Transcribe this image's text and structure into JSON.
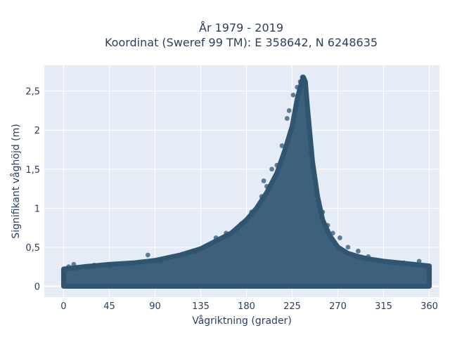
{
  "chart_data": {
    "type": "scatter",
    "title_line1": "År 1979 - 2019",
    "title_line2": "Koordinat (Sweref 99 TM): E 358642, N 6248635",
    "xlabel": "Vågriktning (grader)",
    "ylabel": "Signifikant våghöjd (m)",
    "xlim": [
      -19,
      370
    ],
    "ylim": [
      -0.14,
      2.83
    ],
    "x_ticks": [
      0,
      45,
      90,
      135,
      180,
      225,
      270,
      315,
      360
    ],
    "x_tick_labels": [
      "0",
      "45",
      "90",
      "135",
      "180",
      "225",
      "270",
      "315",
      "360"
    ],
    "y_ticks": [
      0,
      0.5,
      1,
      1.5,
      2,
      2.5
    ],
    "y_tick_labels": [
      "0",
      "0,5",
      "1",
      "1,5",
      "2",
      "2,5"
    ],
    "grid": true,
    "marker_color": "#2f5570",
    "plot_background": "#e5ecf6",
    "envelope": {
      "x": [
        0,
        20,
        45,
        70,
        90,
        115,
        135,
        150,
        165,
        180,
        190,
        200,
        210,
        218,
        225,
        230,
        234,
        236,
        238,
        240,
        245,
        250,
        255,
        262,
        270,
        280,
        290,
        300,
        315,
        330,
        345,
        360
      ],
      "upper": [
        0.22,
        0.25,
        0.28,
        0.3,
        0.33,
        0.4,
        0.48,
        0.58,
        0.68,
        0.85,
        1.0,
        1.2,
        1.45,
        1.75,
        2.05,
        2.4,
        2.6,
        2.68,
        2.62,
        2.3,
        1.6,
        1.15,
        0.85,
        0.65,
        0.5,
        0.42,
        0.38,
        0.35,
        0.32,
        0.3,
        0.28,
        0.26
      ]
    },
    "sample_points": [
      {
        "x": 0,
        "y": 0.12
      },
      {
        "x": 5,
        "y": 0.25
      },
      {
        "x": 10,
        "y": 0.28
      },
      {
        "x": 30,
        "y": 0.27
      },
      {
        "x": 45,
        "y": 0.26
      },
      {
        "x": 83,
        "y": 0.4
      },
      {
        "x": 95,
        "y": 0.32
      },
      {
        "x": 130,
        "y": 0.44
      },
      {
        "x": 150,
        "y": 0.62
      },
      {
        "x": 160,
        "y": 0.68
      },
      {
        "x": 175,
        "y": 0.8
      },
      {
        "x": 185,
        "y": 0.95
      },
      {
        "x": 195,
        "y": 1.15
      },
      {
        "x": 197,
        "y": 1.35
      },
      {
        "x": 200,
        "y": 1.28
      },
      {
        "x": 205,
        "y": 1.5
      },
      {
        "x": 210,
        "y": 1.55
      },
      {
        "x": 215,
        "y": 1.8
      },
      {
        "x": 220,
        "y": 2.15
      },
      {
        "x": 222,
        "y": 2.25
      },
      {
        "x": 226,
        "y": 2.45
      },
      {
        "x": 230,
        "y": 2.55
      },
      {
        "x": 233,
        "y": 2.62
      },
      {
        "x": 235,
        "y": 2.68
      },
      {
        "x": 237,
        "y": 2.65
      },
      {
        "x": 240,
        "y": 2.2
      },
      {
        "x": 243,
        "y": 1.7
      },
      {
        "x": 248,
        "y": 1.3
      },
      {
        "x": 255,
        "y": 0.95
      },
      {
        "x": 260,
        "y": 0.78
      },
      {
        "x": 265,
        "y": 0.68
      },
      {
        "x": 272,
        "y": 0.62
      },
      {
        "x": 280,
        "y": 0.5
      },
      {
        "x": 290,
        "y": 0.45
      },
      {
        "x": 300,
        "y": 0.38
      },
      {
        "x": 320,
        "y": 0.3
      },
      {
        "x": 335,
        "y": 0.3
      },
      {
        "x": 350,
        "y": 0.32
      },
      {
        "x": 358,
        "y": 0.22
      }
    ]
  }
}
